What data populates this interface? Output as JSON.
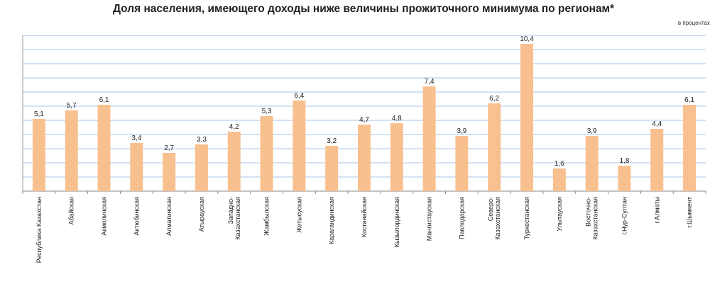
{
  "chart_data": {
    "type": "bar",
    "title": "Доля населения, имеющего доходы ниже величины прожиточного минимума по регионам*",
    "unit_label": "в процентах",
    "categories": [
      "Республика Казахстан",
      "Абайская",
      "Акмолинская",
      "Актюбинская",
      "Алматинская",
      "Атырауская",
      "Западно-Казахстанская",
      "Жамбылская",
      "Жетысуская",
      "Карагандинская",
      "Костанайская",
      "Кызылординская",
      "Мангистауская",
      "Павлодарская",
      "Северо-Казахстанская",
      "Туркестанская",
      "Улытауская",
      "Восточно-Казахстанская",
      "г.Нур-Султан",
      "г.Алматы",
      "г.Шымкент"
    ],
    "value_labels": [
      "5,1",
      "5,7",
      "6,1",
      "3,4",
      "2,7",
      "3,3",
      "4,2",
      "5,3",
      "6,4",
      "3,2",
      "4,7",
      "4,8",
      "7,4",
      "3,9",
      "6,2",
      "10,4",
      "1,6",
      "3,9",
      "1,8",
      "4,4",
      "6,1"
    ],
    "values": [
      5.1,
      5.7,
      6.1,
      3.4,
      2.7,
      3.3,
      4.2,
      5.3,
      6.4,
      3.2,
      4.7,
      4.8,
      7.4,
      3.9,
      6.2,
      10.4,
      1.6,
      3.9,
      1.8,
      4.4,
      6.1
    ],
    "ylim": [
      0,
      11
    ],
    "grid": true,
    "bar_color": "#f9c08f",
    "grid_color": "#a9c4e4"
  }
}
